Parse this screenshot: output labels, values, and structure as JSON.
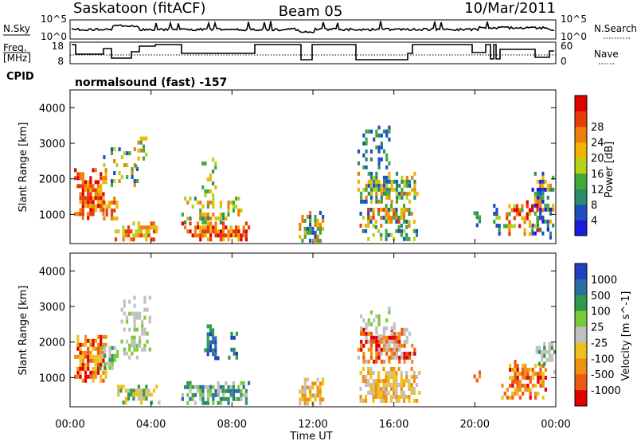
{
  "header": {
    "station": "Saskatoon (fitACF)",
    "beam": "Beam 05",
    "date": "10/Mar/2011"
  },
  "top_panel": {
    "nsky_label": "N.Sky",
    "nsearch_label": "N.Search",
    "left_ticks": [
      "10^5",
      "10^0"
    ],
    "right_ticks": [
      "10^5",
      "10^0"
    ],
    "freq_label_1": "Freq.",
    "freq_label_2": "[MHz]",
    "freq_ticks": [
      "18",
      "8"
    ],
    "nave_label": "Nave",
    "nave_ticks": [
      "60",
      "0"
    ],
    "cpid_label": "CPID",
    "cpid_value": "normalsound (fast) -157"
  },
  "chart_data": [
    {
      "type": "heatmap",
      "name": "power",
      "ylabel": "Slant Range [km]",
      "xlabel": "",
      "ylim": [
        180,
        4500
      ],
      "xlim": [
        0,
        24
      ],
      "yticks": [
        1000,
        2000,
        3000,
        4000
      ],
      "ytick_labels": [
        "1000",
        "2000",
        "3000",
        "4000"
      ],
      "colorbar": {
        "label": "Power [dB]",
        "tick_labels": [
          "4",
          "8",
          "12",
          "16",
          "20",
          "24",
          "28"
        ],
        "colors": [
          "#1a1ae0",
          "#1e4fbf",
          "#2a8a6a",
          "#3faa3a",
          "#b8d21a",
          "#f2b400",
          "#f07d0a",
          "#e83a0a",
          "#e00000"
        ]
      },
      "blobs": [
        {
          "t0": 0.2,
          "t1": 1.8,
          "r0": 900,
          "r1": 2300,
          "p": 0.8,
          "c": [
            5,
            6,
            7,
            8
          ]
        },
        {
          "t0": 1.5,
          "t1": 2.3,
          "r0": 900,
          "r1": 1500,
          "p": 0.8,
          "c": [
            5,
            6,
            7
          ]
        },
        {
          "t0": 2.2,
          "t1": 4.4,
          "r0": 350,
          "r1": 800,
          "p": 0.75,
          "c": [
            4,
            5,
            6,
            7
          ]
        },
        {
          "t0": 1.5,
          "t1": 3.5,
          "r0": 1800,
          "r1": 3000,
          "p": 0.25,
          "c": [
            1,
            3,
            4,
            6
          ]
        },
        {
          "t0": 3.2,
          "t1": 3.9,
          "r0": 2400,
          "r1": 3300,
          "p": 0.45,
          "c": [
            3,
            4,
            5,
            6
          ]
        },
        {
          "t0": 5.5,
          "t1": 8.8,
          "r0": 350,
          "r1": 800,
          "p": 0.8,
          "c": [
            5,
            6,
            7,
            8
          ]
        },
        {
          "t0": 5.5,
          "t1": 8.5,
          "r0": 800,
          "r1": 1500,
          "p": 0.45,
          "c": [
            2,
            3,
            4,
            5,
            6
          ]
        },
        {
          "t0": 6.5,
          "t1": 7.2,
          "r0": 1500,
          "r1": 2600,
          "p": 0.4,
          "c": [
            2,
            3,
            4,
            5
          ]
        },
        {
          "t0": 11.3,
          "t1": 12.5,
          "r0": 300,
          "r1": 1100,
          "p": 0.7,
          "c": [
            1,
            3,
            5,
            6
          ]
        },
        {
          "t0": 14.2,
          "t1": 17.2,
          "r0": 1400,
          "r1": 2200,
          "p": 0.8,
          "c": [
            1,
            2,
            3,
            4,
            5,
            6
          ]
        },
        {
          "t0": 14.3,
          "t1": 17.0,
          "r0": 700,
          "r1": 1300,
          "p": 0.7,
          "c": [
            1,
            2,
            3,
            4,
            5,
            6,
            7
          ]
        },
        {
          "t0": 14.2,
          "t1": 15.8,
          "r0": 2200,
          "r1": 3500,
          "p": 0.35,
          "c": [
            1,
            2,
            3
          ]
        },
        {
          "t0": 14.3,
          "t1": 17.2,
          "r0": 300,
          "r1": 700,
          "p": 0.4,
          "c": [
            1,
            2,
            3,
            4
          ]
        },
        {
          "t0": 19.8,
          "t1": 20.3,
          "r0": 700,
          "r1": 1200,
          "p": 0.5,
          "c": [
            1,
            2,
            3
          ]
        },
        {
          "t0": 20.9,
          "t1": 21.2,
          "r0": 500,
          "r1": 1300,
          "p": 0.6,
          "c": [
            1,
            3,
            4
          ]
        },
        {
          "t0": 21.4,
          "t1": 23.3,
          "r0": 400,
          "r1": 1400,
          "p": 0.6,
          "c": [
            3,
            4,
            5,
            6,
            7,
            8
          ]
        },
        {
          "t0": 22.8,
          "t1": 23.9,
          "r0": 300,
          "r1": 2200,
          "p": 0.55,
          "c": [
            0,
            1,
            2,
            3,
            5,
            6
          ]
        }
      ]
    },
    {
      "type": "heatmap",
      "name": "velocity",
      "ylabel": "Slant Range [km]",
      "xlabel": "Time UT",
      "ylim": [
        180,
        4500
      ],
      "xlim": [
        0,
        24
      ],
      "yticks": [
        1000,
        2000,
        3000,
        4000
      ],
      "ytick_labels": [
        "1000",
        "2000",
        "3000",
        "4000"
      ],
      "xticks": [
        0,
        4,
        8,
        12,
        16,
        20,
        24
      ],
      "xtick_labels": [
        "00:00",
        "04:00",
        "08:00",
        "12:00",
        "16:00",
        "20:00",
        "00:00"
      ],
      "colorbar": {
        "label": "Velocity [m s^-1]",
        "tick_labels": [
          "1000",
          "500",
          "100",
          "25",
          "-25",
          "-100",
          "-500",
          "-1000"
        ],
        "colors": [
          "#2040c0",
          "#2a6ea8",
          "#2f9a4a",
          "#7acb3a",
          "#c0c0c0",
          "#f0c020",
          "#f09010",
          "#f05a10",
          "#e00000"
        ]
      },
      "blobs": [
        {
          "t0": 0.2,
          "t1": 1.8,
          "r0": 900,
          "r1": 2200,
          "p": 0.8,
          "c": [
            6,
            7,
            8,
            5
          ]
        },
        {
          "t0": 1.4,
          "t1": 2.4,
          "r0": 1300,
          "r1": 2000,
          "p": 0.5,
          "c": [
            4,
            3,
            2
          ]
        },
        {
          "t0": 2.2,
          "t1": 4.4,
          "r0": 350,
          "r1": 800,
          "p": 0.6,
          "c": [
            4,
            5,
            2
          ]
        },
        {
          "t0": 2.5,
          "t1": 4.0,
          "r0": 1600,
          "r1": 3300,
          "p": 0.45,
          "c": [
            4,
            4,
            3
          ]
        },
        {
          "t0": 5.5,
          "t1": 8.8,
          "r0": 300,
          "r1": 900,
          "p": 0.8,
          "c": [
            2,
            3,
            1,
            4
          ]
        },
        {
          "t0": 6.5,
          "t1": 7.3,
          "r0": 1500,
          "r1": 2500,
          "p": 0.6,
          "c": [
            0,
            1,
            2
          ]
        },
        {
          "t0": 7.8,
          "t1": 8.3,
          "r0": 1600,
          "r1": 2400,
          "p": 0.5,
          "c": [
            0,
            1,
            2
          ]
        },
        {
          "t0": 11.3,
          "t1": 12.5,
          "r0": 300,
          "r1": 1000,
          "p": 0.7,
          "c": [
            5,
            6,
            4
          ]
        },
        {
          "t0": 14.2,
          "t1": 17.2,
          "r0": 1500,
          "r1": 2400,
          "p": 0.8,
          "c": [
            4,
            6,
            7,
            8
          ]
        },
        {
          "t0": 14.3,
          "t1": 17.2,
          "r0": 300,
          "r1": 1300,
          "p": 0.75,
          "c": [
            5,
            5,
            6,
            4
          ]
        },
        {
          "t0": 14.2,
          "t1": 16.0,
          "r0": 2200,
          "r1": 3000,
          "p": 0.35,
          "c": [
            4,
            4,
            3
          ]
        },
        {
          "t0": 19.8,
          "t1": 20.3,
          "r0": 700,
          "r1": 1200,
          "p": 0.5,
          "c": [
            6,
            7
          ]
        },
        {
          "t0": 21.3,
          "t1": 23.5,
          "r0": 400,
          "r1": 1500,
          "p": 0.65,
          "c": [
            5,
            6,
            7,
            8
          ]
        },
        {
          "t0": 23.0,
          "t1": 23.9,
          "r0": 1200,
          "r1": 2000,
          "p": 0.6,
          "c": [
            4,
            4,
            2
          ]
        }
      ]
    }
  ]
}
